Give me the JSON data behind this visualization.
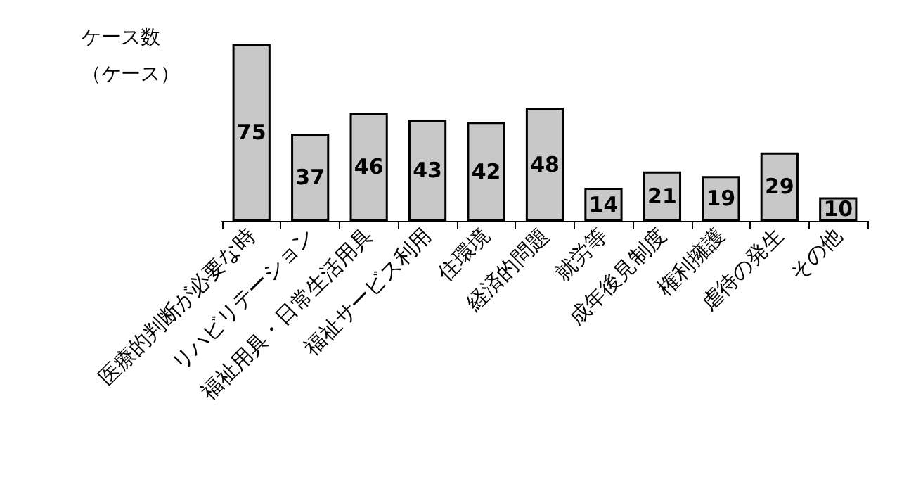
{
  "chart_data": {
    "type": "bar",
    "ylabel": "ケース数（ケース）",
    "categories": [
      "医療的判断が必要な時",
      "リハビリテーション",
      "福祉用具・日常生活用具",
      "福祉サービス利用",
      "住環境",
      "経済的問題",
      "就労等",
      "成年後見制度",
      "権利擁護",
      "虐待の発生",
      "その他"
    ],
    "values": [
      75,
      37,
      46,
      43,
      42,
      48,
      14,
      21,
      19,
      29,
      10
    ],
    "color": "#c8c8c8",
    "data_labels": true
  }
}
